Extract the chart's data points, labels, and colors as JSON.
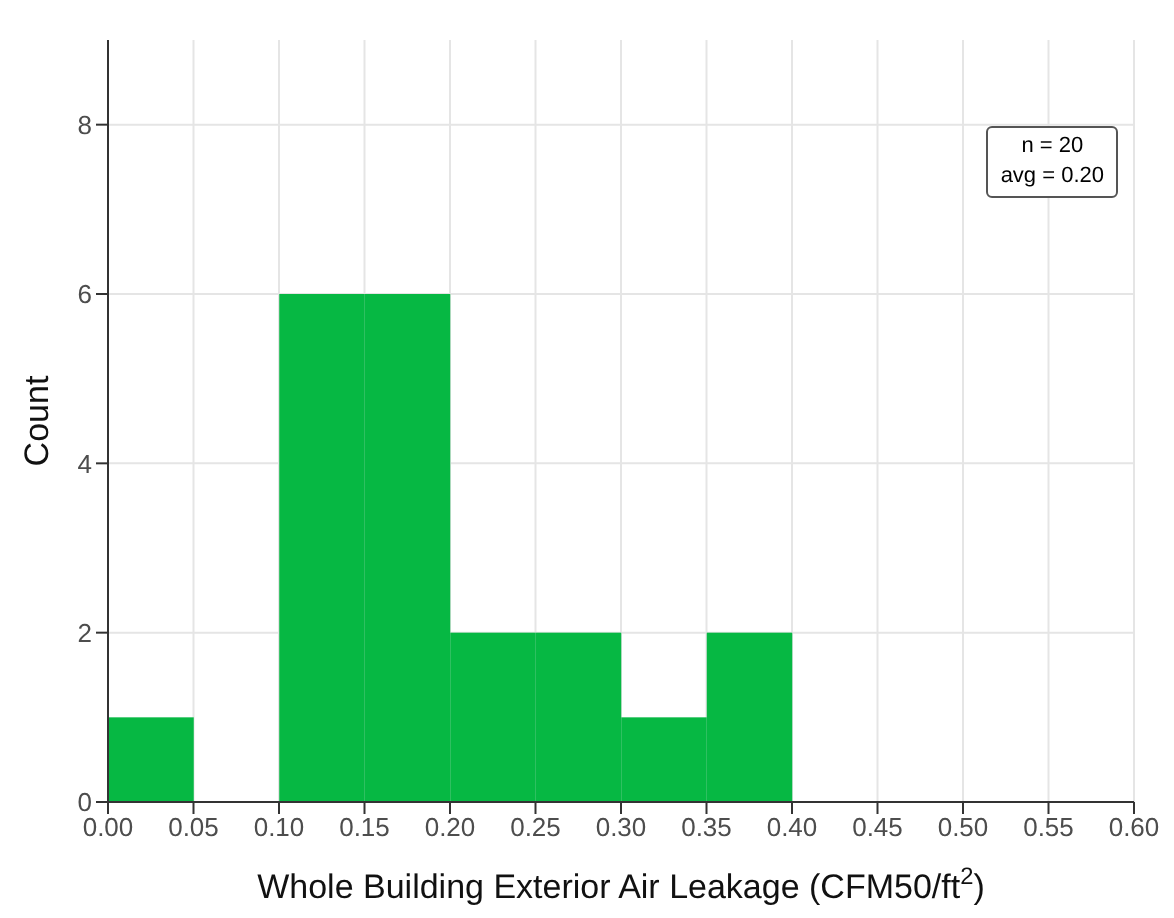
{
  "chart_data": {
    "type": "histogram",
    "xlabel": "Whole Building Exterior Air Leakage (CFM50/ft$^{2}$)",
    "ylabel": "Count",
    "bins": [
      0,
      0.05,
      0.1,
      0.15,
      0.2,
      0.25,
      0.3,
      0.35,
      0.4,
      0.45,
      0.5,
      0.55,
      0.6
    ],
    "values": [
      1,
      0,
      6,
      6,
      2,
      2,
      1,
      2,
      0,
      0,
      0,
      0
    ],
    "color": "#06b843",
    "xlim": [
      0,
      0.6
    ],
    "xticks": [
      {
        "value": 0,
        "label": "0.00"
      },
      {
        "value": 0.05,
        "label": "0.05"
      },
      {
        "value": 0.1,
        "label": "0.10"
      },
      {
        "value": 0.15,
        "label": "0.15"
      },
      {
        "value": 0.2,
        "label": "0.20"
      },
      {
        "value": 0.25,
        "label": "0.25"
      },
      {
        "value": 0.3,
        "label": "0.30"
      },
      {
        "value": 0.35,
        "label": "0.35"
      },
      {
        "value": 0.4,
        "label": "0.40"
      },
      {
        "value": 0.45,
        "label": "0.45"
      },
      {
        "value": 0.5,
        "label": "0.50"
      },
      {
        "value": 0.55,
        "label": "0.55"
      },
      {
        "value": 0.6,
        "label": "0.60"
      }
    ],
    "ylim": [
      0,
      9
    ],
    "yticks": [
      0,
      2,
      4,
      6,
      8
    ],
    "grid": true,
    "annotations": [
      "n = 20",
      "avg = 0.20"
    ]
  }
}
